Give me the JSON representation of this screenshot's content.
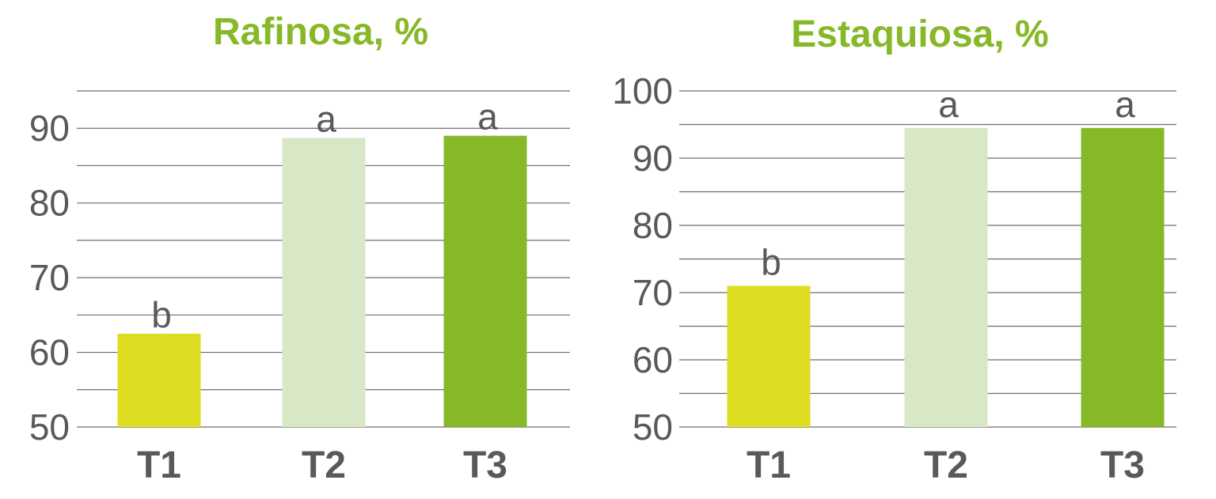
{
  "chart_data": [
    {
      "type": "bar",
      "title": "Rafinosa, %",
      "categories": [
        "T1",
        "T2",
        "T3"
      ],
      "values": [
        62.5,
        88.7,
        89.0
      ],
      "data_labels": [
        "b",
        "a",
        "a"
      ],
      "colors": [
        "#dddd22",
        "#d8e7c6",
        "#86b828"
      ],
      "ylim": [
        50,
        95
      ],
      "yticks": [
        "50",
        "60",
        "70",
        "80",
        "90"
      ],
      "ytick_values": [
        50,
        60,
        70,
        80,
        90
      ],
      "grid_step": 5,
      "grid": true
    },
    {
      "type": "bar",
      "title": "Estaquiosa, %",
      "categories": [
        "T1",
        "T2",
        "T3"
      ],
      "values": [
        71.0,
        94.5,
        94.5
      ],
      "data_labels": [
        "b",
        "a",
        "a"
      ],
      "colors": [
        "#dddd22",
        "#d8e7c6",
        "#86b828"
      ],
      "ylim": [
        50,
        100
      ],
      "yticks": [
        "50",
        "60",
        "70",
        "80",
        "90",
        "100"
      ],
      "ytick_values": [
        50,
        60,
        70,
        80,
        90,
        100
      ],
      "grid_step": 5,
      "grid": true
    }
  ]
}
